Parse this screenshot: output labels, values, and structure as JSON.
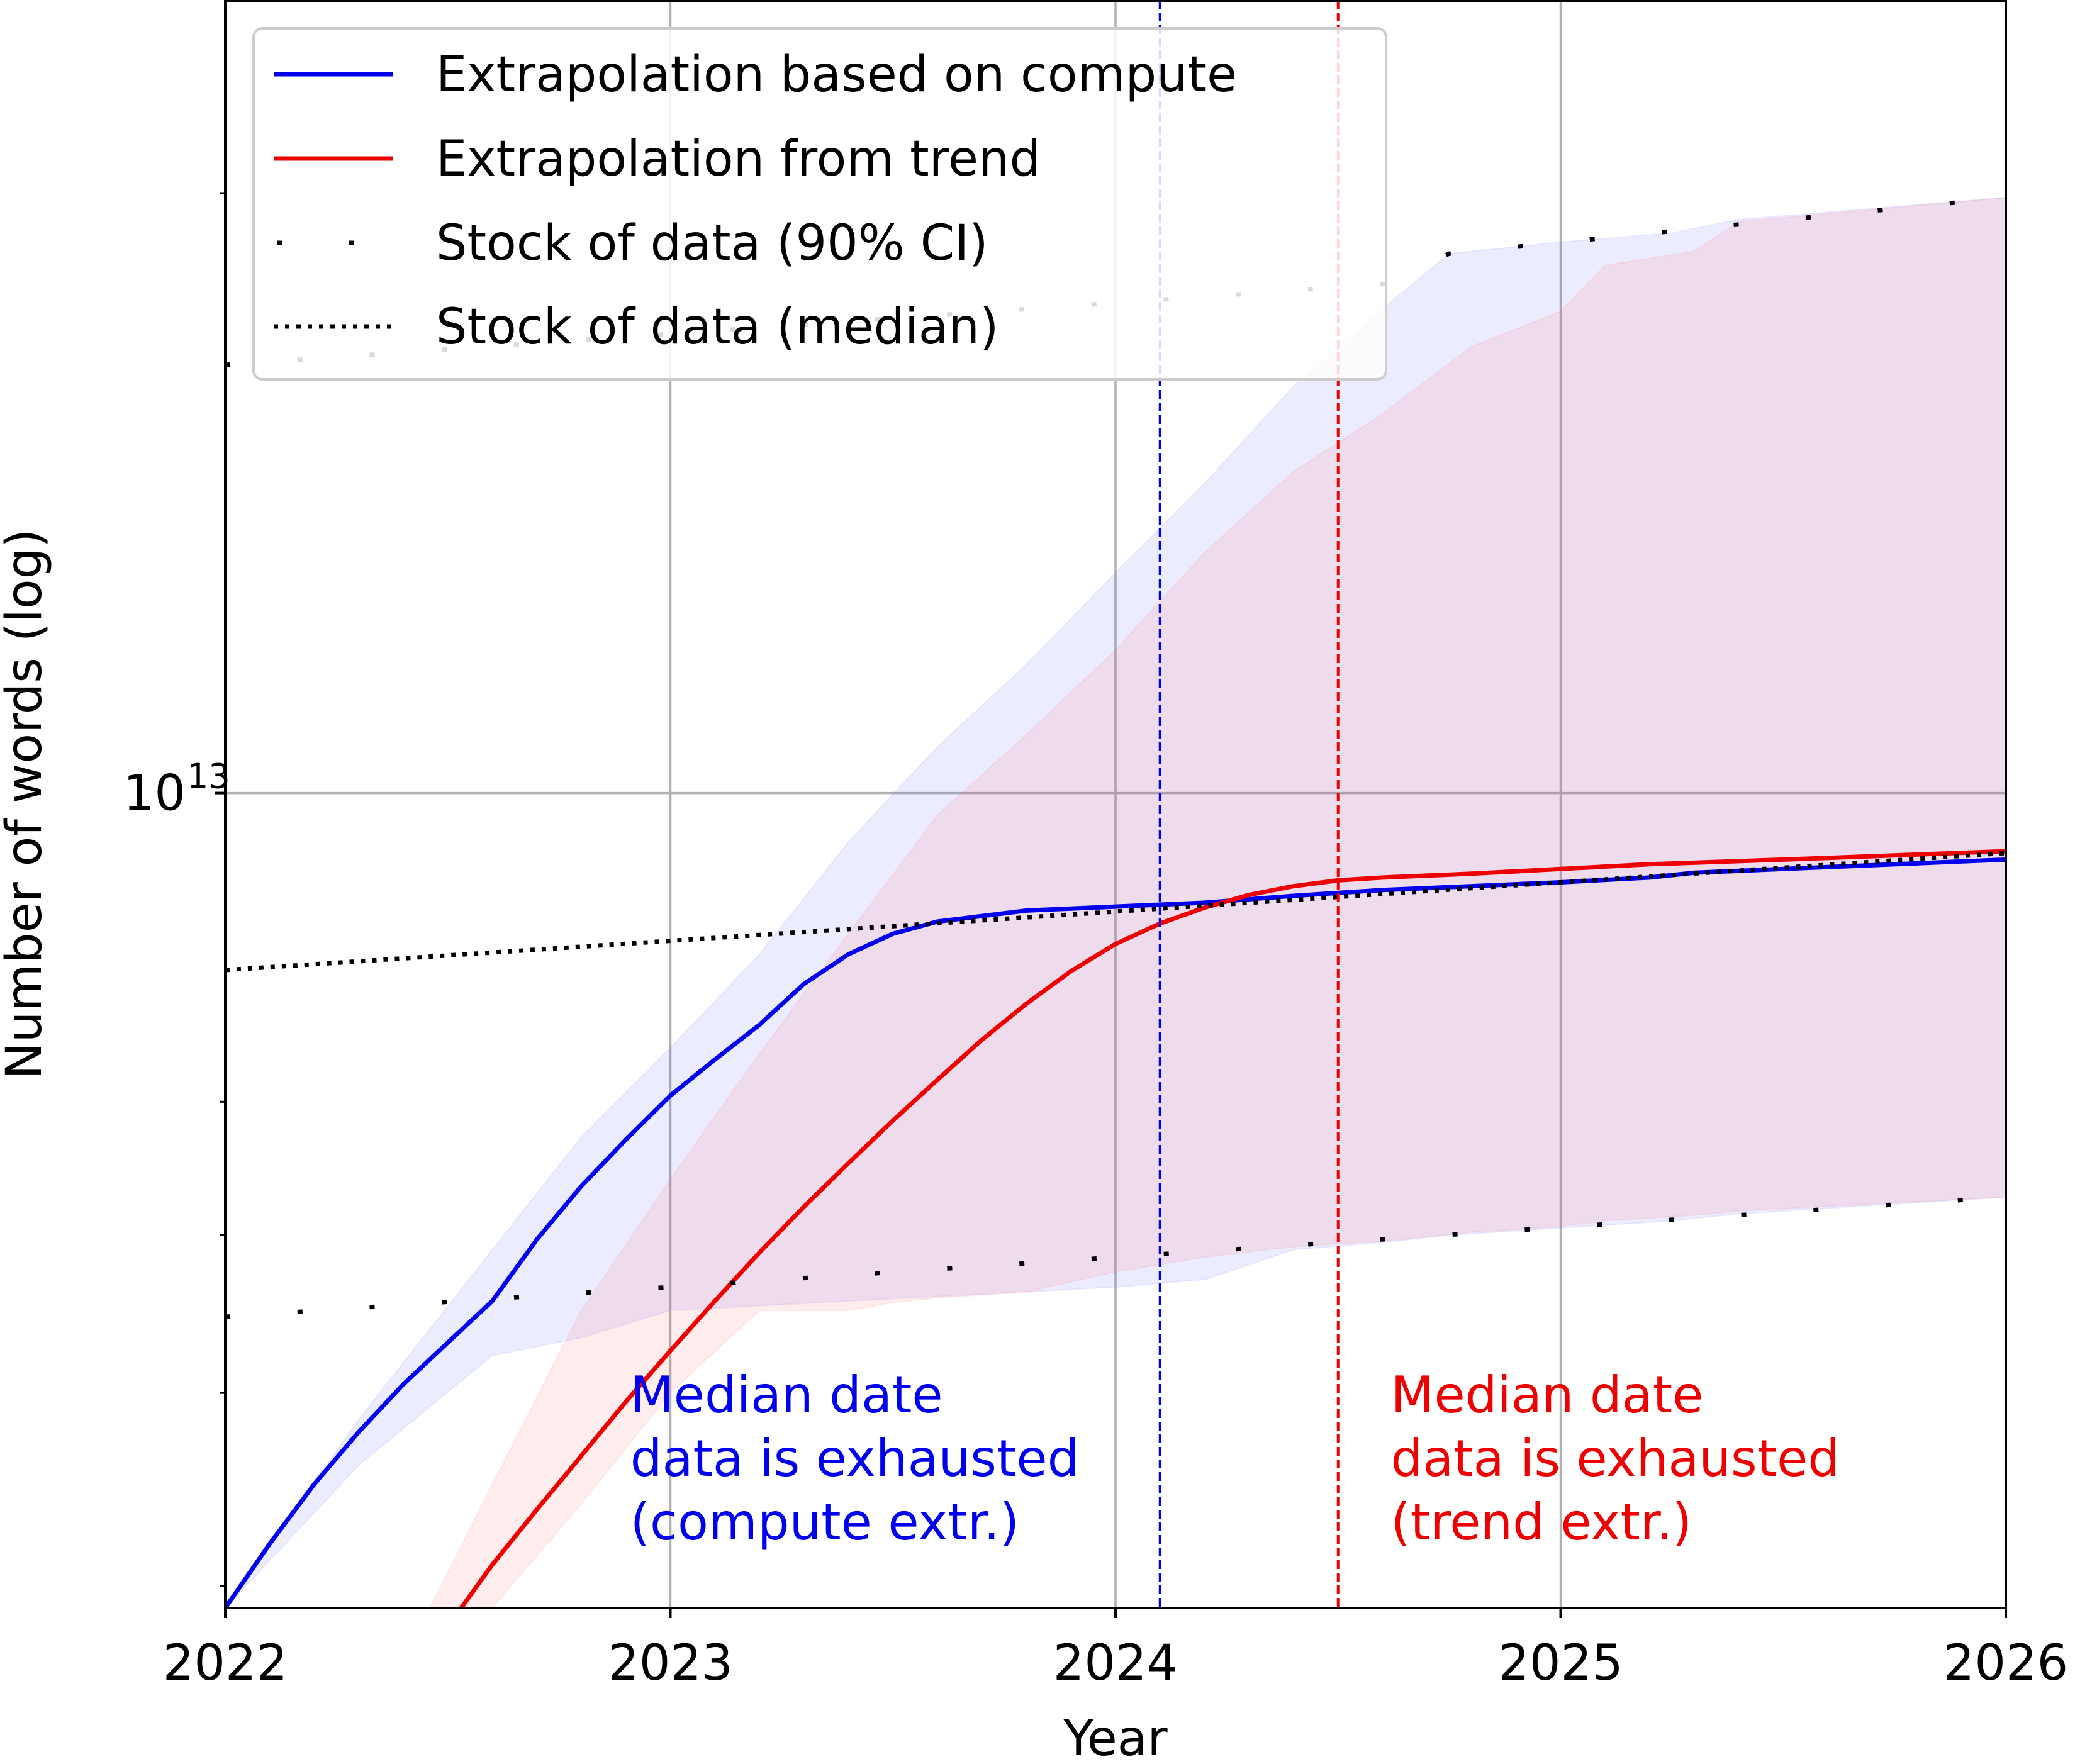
{
  "chart_data": {
    "type": "line",
    "title": "",
    "xlabel": "Year",
    "ylabel": "Number of words (log)",
    "xlim": [
      2022,
      2026
    ],
    "ylim": [
      3900000000000.0,
      25000000000000.0
    ],
    "yscale": "log",
    "grid": true,
    "x_ticks": [
      "2022",
      "2023",
      "2024",
      "2025",
      "2026"
    ],
    "y_tick_label": {
      "base": "10",
      "exponent": "13",
      "value": 10000000000000.0
    },
    "legend": {
      "position": "top-left",
      "entries": [
        {
          "label": "Extrapolation based on compute",
          "color": "#0000ee",
          "style": "solid"
        },
        {
          "label": "Extrapolation from trend",
          "color": "#ee0000",
          "style": "solid"
        },
        {
          "label": "Stock of data (90% CI)",
          "color": "#000000",
          "style": "loosely-dotted"
        },
        {
          "label": "Stock of data (median)",
          "color": "#000000",
          "style": "dotted"
        }
      ]
    },
    "series": [
      {
        "name": "Extrapolation based on compute",
        "color": "#0000ee",
        "x": [
          2022.0,
          2022.1,
          2022.2,
          2022.3,
          2022.4,
          2022.5,
          2022.6,
          2022.7,
          2022.8,
          2022.9,
          2023.0,
          2023.1,
          2023.2,
          2023.3,
          2023.4,
          2023.5,
          2023.6,
          2023.8,
          2024.0,
          2024.2,
          2024.4,
          2024.6,
          2024.8,
          2025.0,
          2025.2,
          2025.3,
          2025.6,
          2026.0
        ],
        "y": [
          3900000000000.0,
          4200000000000.0,
          4500000000000.0,
          4780000000000.0,
          5050000000000.0,
          5300000000000.0,
          5560000000000.0,
          5970000000000.0,
          6350000000000.0,
          6700000000000.0,
          7050000000000.0,
          7350000000000.0,
          7650000000000.0,
          8020000000000.0,
          8300000000000.0,
          8500000000000.0,
          8620000000000.0,
          8730000000000.0,
          8770000000000.0,
          8810000000000.0,
          8880000000000.0,
          8940000000000.0,
          8980000000000.0,
          9020000000000.0,
          9070000000000.0,
          9120000000000.0,
          9180000000000.0,
          9260000000000.0
        ]
      },
      {
        "name": "Extrapolation from trend",
        "color": "#ee0000",
        "x": [
          2022.53,
          2022.6,
          2022.7,
          2022.8,
          2022.9,
          2023.0,
          2023.1,
          2023.2,
          2023.3,
          2023.4,
          2023.5,
          2023.6,
          2023.7,
          2023.8,
          2023.9,
          2024.0,
          2024.1,
          2024.2,
          2024.3,
          2024.4,
          2024.5,
          2024.6,
          2024.8,
          2025.0,
          2025.2,
          2025.5,
          2026.0
        ],
        "y": [
          3900000000000.0,
          4100000000000.0,
          4370000000000.0,
          4650000000000.0,
          4950000000000.0,
          5250000000000.0,
          5560000000000.0,
          5880000000000.0,
          6200000000000.0,
          6520000000000.0,
          6850000000000.0,
          7180000000000.0,
          7520000000000.0,
          7840000000000.0,
          8140000000000.0,
          8400000000000.0,
          8600000000000.0,
          8760000000000.0,
          8890000000000.0,
          8980000000000.0,
          9040000000000.0,
          9070000000000.0,
          9110000000000.0,
          9160000000000.0,
          9210000000000.0,
          9260000000000.0,
          9350000000000.0
        ]
      },
      {
        "name": "Stock of data (median)",
        "color": "#000000",
        "x": [
          2022.0,
          2026.0
        ],
        "y": [
          8150000000000.0,
          9330000000000.0
        ]
      },
      {
        "name": "Stock of data (90% CI) upper",
        "color": "#000000",
        "x": [
          2022.0,
          2024.6,
          2024.75,
          2026.0
        ],
        "y": [
          16400000000000.0,
          18000000000000.0,
          18650000000000.0,
          19900000000000.0
        ]
      },
      {
        "name": "Stock of data (90% CI) lower",
        "color": "#000000",
        "x": [
          2022.0,
          2024.5,
          2026.0
        ],
        "y": [
          5460000000000.0,
          5950000000000.0,
          6270000000000.0
        ]
      }
    ],
    "bands": [
      {
        "color": "#6666ff",
        "x": [
          2022.0,
          2022.3,
          2022.6,
          2022.8,
          2023.0,
          2023.2,
          2023.4,
          2023.6,
          2023.8,
          2024.0,
          2024.2,
          2024.4,
          2024.6,
          2024.75,
          2025.0,
          2025.25,
          2025.4,
          2026.0
        ],
        "upper": [
          3900000000000.0,
          4850000000000.0,
          5900000000000.0,
          6720000000000.0,
          7450000000000.0,
          8300000000000.0,
          9450000000000.0,
          10550000000000.0,
          11600000000000.0,
          12900000000000.0,
          14300000000000.0,
          16000000000000.0,
          17500000000000.0,
          18650000000000.0,
          18900000000000.0,
          19100000000000.0,
          19400000000000.0,
          19900000000000.0
        ],
        "lower": [
          3900000000000.0,
          4600000000000.0,
          5220000000000.0,
          5330000000000.0,
          5500000000000.0,
          5530000000000.0,
          5560000000000.0,
          5590000000000.0,
          5620000000000.0,
          5650000000000.0,
          5700000000000.0,
          5900000000000.0,
          5950000000000.0,
          6000000000000.0,
          6050000000000.0,
          6100000000000.0,
          6150000000000.0,
          6270000000000.0
        ]
      },
      {
        "color": "#ff6666",
        "x": [
          2022.46,
          2022.6,
          2022.8,
          2023.0,
          2023.2,
          2023.4,
          2023.5,
          2023.6,
          2023.8,
          2024.0,
          2024.2,
          2024.4,
          2024.6,
          2024.8,
          2025.0,
          2025.1,
          2025.3,
          2025.4,
          2026.0
        ],
        "upper": [
          3900000000000.0,
          4500000000000.0,
          5500000000000.0,
          6400000000000.0,
          7400000000000.0,
          8500000000000.0,
          9100000000000.0,
          9750000000000.0,
          10700000000000.0,
          11800000000000.0,
          13200000000000.0,
          14500000000000.0,
          15500000000000.0,
          16750000000000.0,
          17450000000000.0,
          18400000000000.0,
          18700000000000.0,
          19350000000000.0,
          19900000000000.0
        ],
        "lower": [
          3900000000000.0,
          3900000000000.0,
          4400000000000.0,
          5000000000000.0,
          5500000000000.0,
          5500000000000.0,
          5550000000000.0,
          5580000000000.0,
          5620000000000.0,
          5750000000000.0,
          5850000000000.0,
          5920000000000.0,
          5960000000000.0,
          6020000000000.0,
          6060000000000.0,
          6100000000000.0,
          6140000000000.0,
          6170000000000.0,
          6270000000000.0
        ]
      }
    ],
    "vlines": [
      {
        "x": 2024.1,
        "color": "#0000ee",
        "style": "dashed"
      },
      {
        "x": 2024.5,
        "color": "#ee0000",
        "style": "dashed"
      }
    ],
    "annotations": [
      {
        "lines": [
          "Median date",
          "data is exhausted",
          "(compute extr.)"
        ],
        "color": "#0000ee",
        "x": 2022.9
      },
      {
        "lines": [
          "Median date",
          "data is exhausted",
          "(trend extr.)"
        ],
        "color": "#ee0000",
        "x": 2024.6
      }
    ]
  }
}
